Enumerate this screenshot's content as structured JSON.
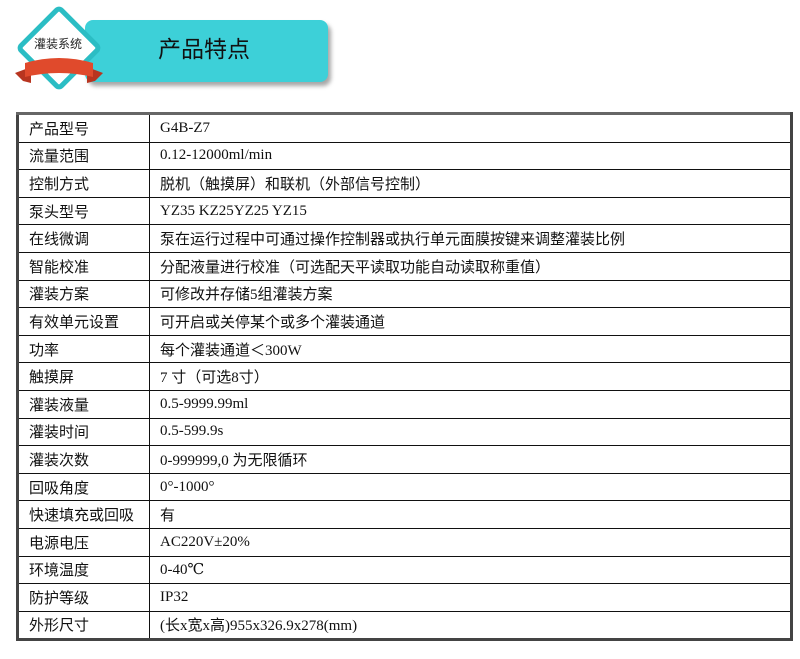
{
  "header": {
    "badge_text": "灌装系统",
    "title": "产品特点",
    "accent": "#3dd0d8",
    "ribbon_color": "#e04a2c"
  },
  "specs": [
    {
      "key": "产品型号",
      "value": "G4B-Z7"
    },
    {
      "key": "流量范围",
      "value": "0.12-12000ml/min"
    },
    {
      "key": "控制方式",
      "value": "脱机（触摸屏）和联机（外部信号控制）"
    },
    {
      "key": "泵头型号",
      "value": "YZ35 KZ25YZ25 YZ15"
    },
    {
      "key": "在线微调",
      "value": "泵在运行过程中可通过操作控制器或执行单元面膜按键来调整灌装比例"
    },
    {
      "key": "智能校准",
      "value": "分配液量进行校准（可选配天平读取功能自动读取称重值）"
    },
    {
      "key": "灌装方案",
      "value": "可修改并存储5组灌装方案"
    },
    {
      "key": "有效单元设置",
      "value": "可开启或关停某个或多个灌装通道"
    },
    {
      "key": "功率",
      "value": "每个灌装通道＜300W"
    },
    {
      "key": "触摸屏",
      "value": "7 寸（可选8寸）"
    },
    {
      "key": "灌装液量",
      "value": "0.5-9999.99ml"
    },
    {
      "key": "灌装时间",
      "value": "0.5-599.9s"
    },
    {
      "key": "灌装次数",
      "value": "0-999999,0 为无限循环"
    },
    {
      "key": "回吸角度",
      "value": "0°-1000°"
    },
    {
      "key": "快速填充或回吸",
      "value": "有"
    },
    {
      "key": "电源电压",
      "value": "AC220V±20%"
    },
    {
      "key": "环境温度",
      "value": "0-40℃"
    },
    {
      "key": "防护等级",
      "value": "IP32"
    },
    {
      "key": "外形尺寸",
      "value": "(长x宽x高)955x326.9x278(mm)"
    }
  ]
}
